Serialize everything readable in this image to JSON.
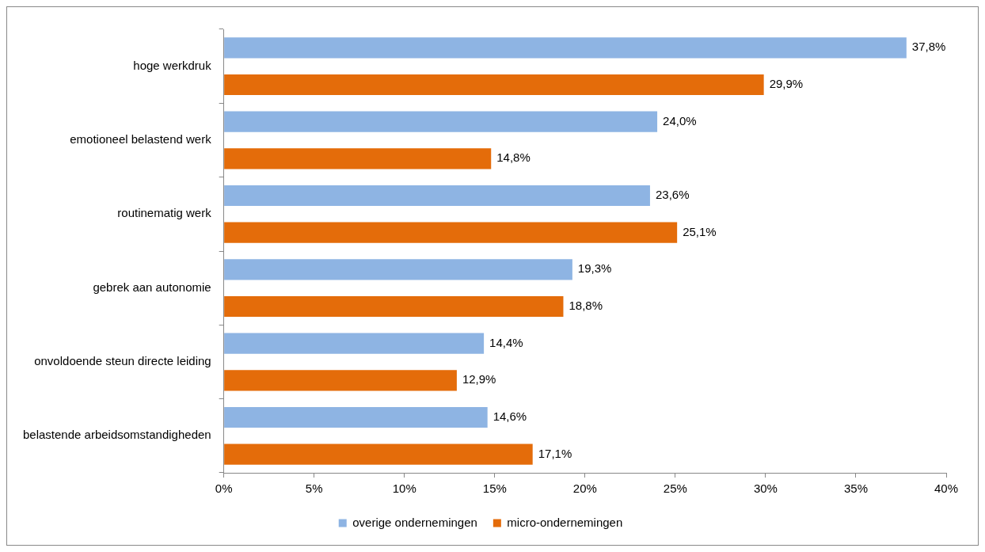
{
  "chart_data": {
    "type": "bar",
    "orientation": "horizontal",
    "categories": [
      "hoge werkdruk",
      "emotioneel belastend werk",
      "routinematig werk",
      "gebrek aan autonomie",
      "onvoldoende steun directe leiding",
      "belastende arbeidsomstandigheden"
    ],
    "series": [
      {
        "name": "overige ondernemingen",
        "color": "#8eb4e3",
        "values": [
          37.8,
          24.0,
          23.6,
          19.3,
          14.4,
          14.6
        ],
        "value_labels": [
          "37,8%",
          "24,0%",
          "23,6%",
          "19,3%",
          "14,4%",
          "14,6%"
        ]
      },
      {
        "name": "micro-ondernemingen",
        "color": "#e46c0a",
        "values": [
          29.9,
          14.8,
          25.1,
          18.8,
          12.9,
          17.1
        ],
        "value_labels": [
          "29,9%",
          "14,8%",
          "25,1%",
          "18,8%",
          "12,9%",
          "17,1%"
        ]
      }
    ],
    "xlim": [
      0,
      40
    ],
    "xticks": [
      {
        "value": 0,
        "label": "0%"
      },
      {
        "value": 5,
        "label": "5%"
      },
      {
        "value": 10,
        "label": "10%"
      },
      {
        "value": 15,
        "label": "15%"
      },
      {
        "value": 20,
        "label": "20%"
      },
      {
        "value": 25,
        "label": "25%"
      },
      {
        "value": 30,
        "label": "30%"
      },
      {
        "value": 35,
        "label": "35%"
      },
      {
        "value": 40,
        "label": "40%"
      }
    ],
    "grid": false,
    "legend": "bottom"
  }
}
